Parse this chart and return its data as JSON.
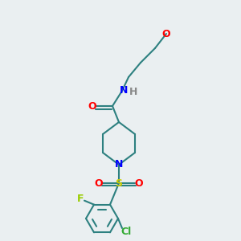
{
  "bg_color": "#eaeff1",
  "bond_color": "#2d8080",
  "bond_width": 1.5,
  "atom_colors": {
    "O": "#ff0000",
    "N": "#0000ff",
    "F": "#99cc00",
    "Cl": "#33aa33",
    "S": "#cccc00",
    "H": "#888888"
  },
  "font_size": 9,
  "title": ""
}
